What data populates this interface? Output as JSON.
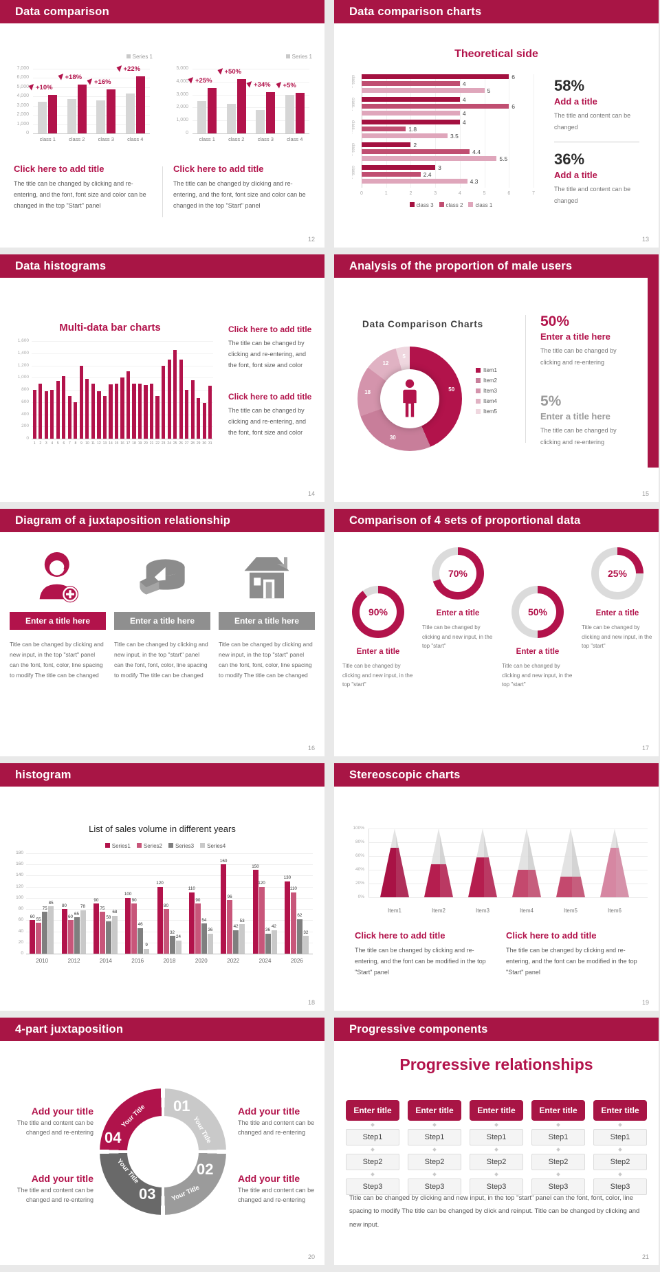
{
  "theme": {
    "crimson": "#A81545",
    "accent_red": "#B2134B",
    "rose": "#C25775",
    "pink": "#DFA6BB",
    "gray_bar": "#D6D6D6",
    "dark_gray": "#7F7F7F",
    "mid_gray": "#9B9B9B",
    "light_gray": "#C9C9C9",
    "banner_gray": "#8F8F8F",
    "text_gray": "#595959"
  },
  "slides": [
    {
      "header": "Data comparison",
      "page": "12",
      "blocks": [
        {
          "heading": "Click here to add title",
          "body": "The title can be changed by clicking and re-entering, and the font, font size and color can be changed in the top \"Start\" panel"
        },
        {
          "heading": "Click here to add title",
          "body": "The title can be changed by clicking and re-entering, and the font, font size and color can be changed in the top \"Start\" panel"
        }
      ]
    },
    {
      "header": "Data comparison charts",
      "page": "13",
      "title": "Theoretical side",
      "stats": [
        {
          "value": "58%",
          "title": "Add a title",
          "body": "The title and content can be changed"
        },
        {
          "value": "36%",
          "title": "Add a title",
          "body": "The title and content can be changed"
        }
      ]
    },
    {
      "header": "Data histograms",
      "page": "14",
      "title": "Multi-data bar charts",
      "blocks": [
        {
          "heading": "Click here to add title",
          "body": "The title can be changed by clicking and re-entering, and the font, font size and color"
        },
        {
          "heading": "Click here to add title",
          "body": "The title can be changed by clicking and re-entering, and the font, font size and color"
        }
      ]
    },
    {
      "header": "Analysis of the proportion of male users",
      "page": "15",
      "title": "Data Comparison Charts",
      "stats": [
        {
          "value": "50%",
          "title": "Enter a title here",
          "body": "The title can be changed by clicking and re-entering"
        },
        {
          "value": "5%",
          "title": "Enter a title here",
          "body": "The title can be changed by clicking and re-entering"
        }
      ]
    },
    {
      "header": "Diagram of a juxtaposition relationship",
      "page": "16",
      "columns": [
        {
          "icon": "woman-plus-icon",
          "banner": "Enter a title here",
          "body": "Title can be changed by clicking and new input, in the top \"start\" panel can the font, font, color, line spacing to modify The title can be changed"
        },
        {
          "icon": "cheese-icon",
          "banner": "Enter a title here",
          "body": "Title can be changed by clicking and new input, in the top \"start\" panel can the font, font, color, line spacing to modify The title can be changed"
        },
        {
          "icon": "building-icon",
          "banner": "Enter a title here",
          "body": "Title can be changed by clicking and new input, in the top \"start\" panel can the font, font, color, line spacing to modify The title can be changed"
        }
      ]
    },
    {
      "header": "Comparison of 4 sets of proportional data",
      "page": "17",
      "items": [
        {
          "title": "Enter a title",
          "body": "Title can be changed by clicking and new input, in the top \"start\""
        },
        {
          "title": "Enter a title",
          "body": "Title can be changed by clicking and new input, in the top \"start\""
        },
        {
          "title": "Enter a title",
          "body": "Title can be changed by clicking and new input, in the top \"start\""
        },
        {
          "title": "Enter a title",
          "body": "Title can be changed by clicking and new input, in the top \"start\""
        }
      ]
    },
    {
      "header": "histogram",
      "page": "18",
      "title": "List of sales volume in different years"
    },
    {
      "header": "Stereoscopic charts",
      "page": "19",
      "blocks": [
        {
          "heading": "Click here to add title",
          "body": "The title can be changed by clicking and re-entering, and the font can be modified in the top \"Start\" panel"
        },
        {
          "heading": "Click here to add title",
          "body": "The title can be changed by clicking and re-entering, and the font can be modified in the top \"Start\" panel"
        }
      ]
    },
    {
      "header": "4-part juxtaposition",
      "page": "20",
      "quadrants": [
        {
          "num": "01",
          "label": "Your Title"
        },
        {
          "num": "02",
          "label": "Your Title"
        },
        {
          "num": "03",
          "label": "Your Title"
        },
        {
          "num": "04",
          "label": "Your Title"
        }
      ],
      "corners": [
        {
          "heading": "Add your title",
          "body": "The title and content can be changed and re-entering"
        },
        {
          "heading": "Add your title",
          "body": "The title and content can be changed and re-entering"
        },
        {
          "heading": "Add your title",
          "body": "The title and content can be changed and re-entering"
        },
        {
          "heading": "Add your title",
          "body": "The title and content can be changed and re-entering"
        }
      ]
    },
    {
      "header": "Progressive components",
      "page": "21",
      "title": "Progressive relationships",
      "columns": [
        {
          "header": "Enter title",
          "steps": [
            "Step1",
            "Step2",
            "Step3"
          ]
        },
        {
          "header": "Enter title",
          "steps": [
            "Step1",
            "Step2",
            "Step3"
          ]
        },
        {
          "header": "Enter title",
          "steps": [
            "Step1",
            "Step2",
            "Step3"
          ]
        },
        {
          "header": "Enter title",
          "steps": [
            "Step1",
            "Step2",
            "Step3"
          ]
        },
        {
          "header": "Enter title",
          "steps": [
            "Step1",
            "Step2",
            "Step3"
          ]
        }
      ],
      "footer": "Title can be changed by clicking and new input, in the top \"start\" panel can the font, font, color, line spacing to modify The title can be changed by click and reinput. Title can be changed by clicking and new input."
    }
  ],
  "chart_data": [
    {
      "id": "pairL",
      "type": "bar",
      "legend": [
        "Series 1"
      ],
      "categories": [
        "class 1",
        "class 2",
        "class 3",
        "class 4"
      ],
      "series": [
        {
          "name": "base",
          "color": "#D6D6D6",
          "values": [
            3400,
            3700,
            3600,
            4300
          ]
        },
        {
          "name": "Series 1",
          "color": "#B2134B",
          "values": [
            4200,
            5300,
            4800,
            6200
          ]
        }
      ],
      "growth_labels": [
        "+10%",
        "+18%",
        "+16%",
        "+22%"
      ],
      "ylim": [
        0,
        7000
      ],
      "yticks": [
        "0",
        "1,000",
        "2,000",
        "3,000",
        "4,000",
        "5,000",
        "6,000",
        "7,000"
      ]
    },
    {
      "id": "pairR",
      "type": "bar",
      "legend": [
        "Series 1"
      ],
      "categories": [
        "class 1",
        "class 2",
        "class 3",
        "class 4"
      ],
      "series": [
        {
          "name": "base",
          "color": "#D6D6D6",
          "values": [
            2500,
            2300,
            1800,
            3000
          ]
        },
        {
          "name": "Series 1",
          "color": "#B2134B",
          "values": [
            3500,
            4200,
            3200,
            3150
          ]
        }
      ],
      "growth_labels": [
        "+25%",
        "+50%",
        "+34%",
        "+5%"
      ],
      "ylim": [
        0,
        5000
      ],
      "yticks": [
        "0",
        "1,000",
        "2,000",
        "3,000",
        "4,000",
        "5,000"
      ]
    },
    {
      "id": "theoretical",
      "type": "bar",
      "orientation": "horizontal",
      "title": "Theoretical side",
      "categories": [
        "class…",
        "class…",
        "class…",
        "class…",
        "class…"
      ],
      "series": [
        {
          "name": "class 3",
          "color": "#A41140",
          "values": [
            6,
            4,
            4,
            2,
            3
          ]
        },
        {
          "name": "class 2",
          "color": "#C04E71",
          "values": [
            4,
            6,
            1.8,
            4.4,
            2.4
          ]
        },
        {
          "name": "class 1",
          "color": "#DFA6BB",
          "values": [
            5,
            4,
            3.5,
            5.5,
            4.3
          ]
        }
      ],
      "xlim": [
        0,
        7
      ],
      "xticks": [
        "0",
        "1",
        "2",
        "3",
        "4",
        "5",
        "6",
        "7"
      ],
      "legend_position": "bottom"
    },
    {
      "id": "multi",
      "type": "bar",
      "title": "Multi-data bar charts",
      "color": "#B2134B",
      "categories": [
        "1",
        "2",
        "3",
        "4",
        "5",
        "6",
        "7",
        "8",
        "9",
        "10",
        "11",
        "12",
        "13",
        "14",
        "15",
        "16",
        "17",
        "18",
        "19",
        "20",
        "21",
        "22",
        "23",
        "24",
        "25",
        "26",
        "27",
        "28",
        "29",
        "30",
        "31"
      ],
      "values": [
        800,
        900,
        780,
        800,
        950,
        1020,
        700,
        600,
        1200,
        980,
        900,
        780,
        700,
        890,
        900,
        1000,
        1100,
        900,
        900,
        880,
        900,
        700,
        1200,
        1300,
        1450,
        1300,
        800,
        960,
        660,
        590,
        870
      ],
      "ylim": [
        0,
        1600
      ],
      "yticks": [
        "0",
        "200",
        "400",
        "600",
        "800",
        "1,000",
        "1,200",
        "1,400",
        "1,600"
      ]
    },
    {
      "id": "donut",
      "type": "pie",
      "title": "Data Comparison Charts",
      "labels": [
        "Item1",
        "Item2",
        "Item3",
        "Item4",
        "Item5"
      ],
      "values": [
        50,
        30,
        18,
        12,
        5
      ],
      "colors": [
        "#B2134B",
        "#C87E9A",
        "#D494AC",
        "#E0B2C3",
        "#EFD7DF"
      ],
      "legend_position": "right"
    },
    {
      "id": "rings",
      "type": "pie",
      "variant": "progress-rings",
      "percents": [
        90,
        70,
        50,
        25
      ],
      "color": "#B2134B",
      "track": "#DBDBDB"
    },
    {
      "id": "sales",
      "type": "bar",
      "title": "List of sales volume in different years",
      "categories": [
        "2010",
        "2012",
        "2014",
        "2016",
        "2018",
        "2020",
        "2022",
        "2024",
        "2026"
      ],
      "series": [
        {
          "name": "Series1",
          "color": "#B2134B",
          "values": [
            60,
            80,
            90,
            100,
            120,
            110,
            160,
            150,
            130
          ]
        },
        {
          "name": "Series2",
          "color": "#C8567A",
          "values": [
            55,
            60,
            75,
            90,
            80,
            90,
            96,
            120,
            110
          ]
        },
        {
          "name": "Series3",
          "color": "#7F7F7F",
          "values": [
            75,
            65,
            58,
            46,
            32,
            54,
            42,
            36,
            62
          ]
        },
        {
          "name": "Series4",
          "color": "#C9C9C9",
          "values": [
            85,
            78,
            68,
            9,
            24,
            36,
            53,
            42,
            32
          ]
        }
      ],
      "ylim": [
        0,
        180
      ],
      "yticks": [
        "0",
        "20",
        "40",
        "60",
        "80",
        "100",
        "120",
        "140",
        "160",
        "180"
      ],
      "legend_position": "top"
    },
    {
      "id": "cones",
      "type": "cone",
      "categories": [
        "Item1",
        "Item2",
        "Item3",
        "Item4",
        "Item5",
        "Item6"
      ],
      "values_pct": [
        72,
        48,
        58,
        40,
        30,
        72
      ],
      "colors": [
        "#A91245",
        "#B51E4F",
        "#B51E4F",
        "#C4496E",
        "#C4496E",
        "#D687A2"
      ],
      "yticks": [
        "0%",
        "20%",
        "40%",
        "60%",
        "80%",
        "100%"
      ]
    }
  ]
}
